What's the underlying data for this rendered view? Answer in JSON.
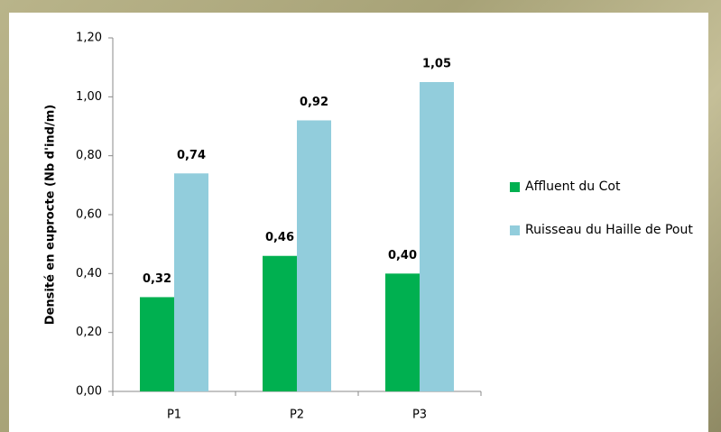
{
  "chart_data": {
    "type": "bar",
    "y_label": "Densité en euprocte (Nb d'ind/m)",
    "categories": [
      "P1",
      "P2",
      "P3"
    ],
    "series": [
      {
        "name": "Affluent du Cot",
        "color": "#00b050",
        "values": [
          0.32,
          0.46,
          0.4
        ],
        "value_labels": [
          "0,32",
          "0,46",
          "0,40"
        ]
      },
      {
        "name": "Ruisseau du Haille de Pout",
        "color": "#92cddc",
        "values": [
          0.74,
          0.92,
          1.05
        ],
        "value_labels": [
          "0,74",
          "0,92",
          "1,05"
        ]
      }
    ],
    "ylim": [
      0,
      1.2
    ],
    "yticks": [
      {
        "value": 0,
        "label": "0,00"
      },
      {
        "value": 0.2,
        "label": "0,20"
      },
      {
        "value": 0.4,
        "label": "0,40"
      },
      {
        "value": 0.6,
        "label": "0,60"
      },
      {
        "value": 0.8,
        "label": "0,80"
      },
      {
        "value": 1.0,
        "label": "1,00"
      },
      {
        "value": 1.2,
        "label": "1,20"
      }
    ],
    "grid": false,
    "legend": "right"
  }
}
